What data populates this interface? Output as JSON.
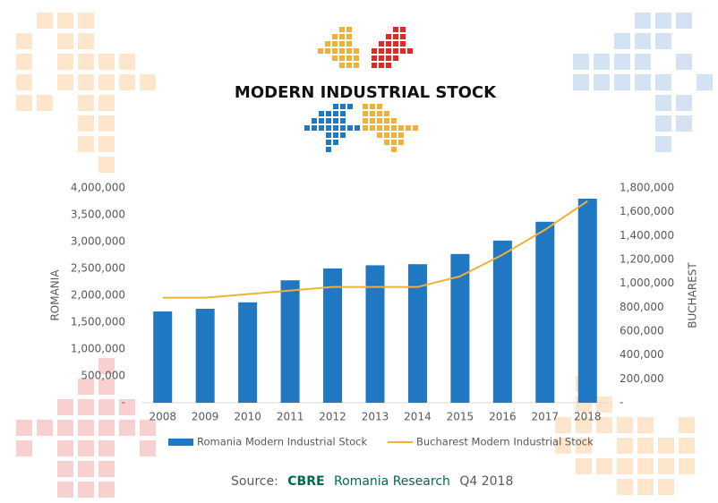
{
  "chart_data": {
    "type": "bar_line",
    "title": "MODERN INDUSTRIAL STOCK",
    "categories": [
      "2008",
      "2009",
      "2010",
      "2011",
      "2012",
      "2013",
      "2014",
      "2015",
      "2016",
      "2017",
      "2018"
    ],
    "ylabel": "ROMANIA",
    "y2label": "BUCHAREST",
    "ylim": [
      0,
      4000000
    ],
    "yticks": [
      {
        "value": 0,
        "label": "-"
      },
      {
        "value": 500000,
        "label": "500,000"
      },
      {
        "value": 1000000,
        "label": "1,000,000"
      },
      {
        "value": 1500000,
        "label": "1,500,000"
      },
      {
        "value": 2000000,
        "label": "2,000,000"
      },
      {
        "value": 2500000,
        "label": "2,500,000"
      },
      {
        "value": 3000000,
        "label": "3,000,000"
      },
      {
        "value": 3500000,
        "label": "3,500,000"
      },
      {
        "value": 4000000,
        "label": "4,000,000"
      }
    ],
    "y2lim": [
      0,
      1800000
    ],
    "y2ticks": [
      {
        "value": 0,
        "label": "-"
      },
      {
        "value": 200000,
        "label": "200,000"
      },
      {
        "value": 400000,
        "label": "400,000"
      },
      {
        "value": 600000,
        "label": "600,000"
      },
      {
        "value": 800000,
        "label": "800,000"
      },
      {
        "value": 1000000,
        "label": "1,000,000"
      },
      {
        "value": 1200000,
        "label": "1,200,000"
      },
      {
        "value": 1400000,
        "label": "1,400,000"
      },
      {
        "value": 1600000,
        "label": "1,600,000"
      },
      {
        "value": 1800000,
        "label": "1,800,000"
      }
    ],
    "series": [
      {
        "name": "Romania Modern Industrial Stock",
        "type": "bar",
        "color": "#1f78c1",
        "values": [
          1700000,
          1750000,
          1870000,
          2280000,
          2500000,
          2560000,
          2580000,
          2770000,
          3020000,
          3370000,
          3800000
        ]
      },
      {
        "name": "Bucharest Modern Industrial Stock",
        "type": "line",
        "axis": "y2",
        "color": "#f0b136",
        "values": [
          880000,
          880000,
          910000,
          940000,
          970000,
          970000,
          970000,
          1060000,
          1240000,
          1450000,
          1690000
        ]
      }
    ],
    "legend": "bottom",
    "source": {
      "prefix": "Source:",
      "brand": "CBRE",
      "name": "Romania Research",
      "period": "Q4 2018"
    }
  }
}
